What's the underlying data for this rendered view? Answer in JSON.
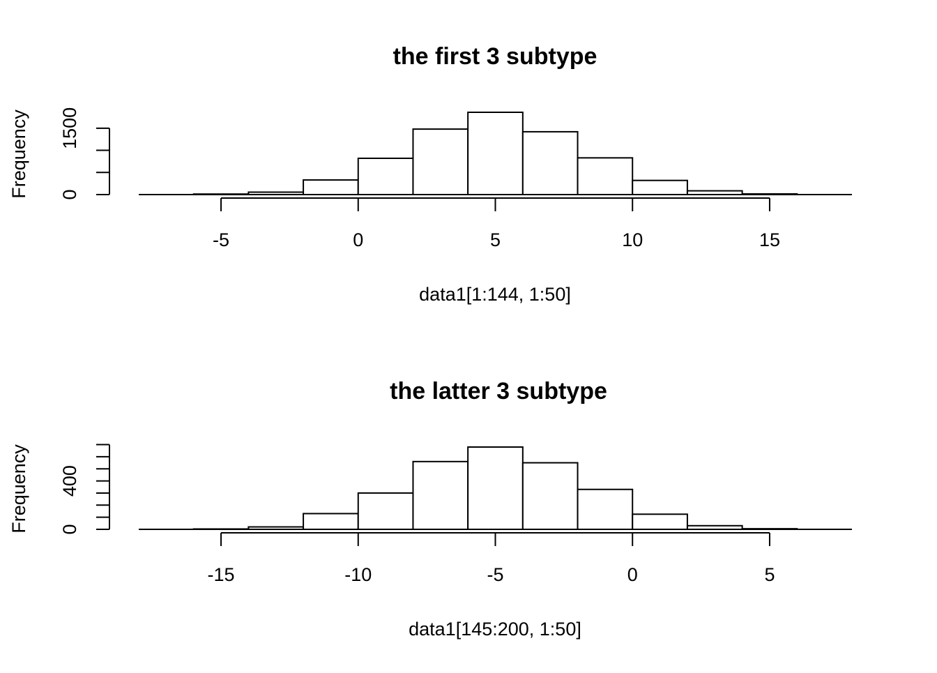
{
  "chart_data": [
    {
      "type": "bar",
      "title": "the first 3 subtype",
      "xlabel": "data1[1:144, 1:50]",
      "ylabel": "Frequency",
      "bin_edges": [
        -6,
        -4,
        -2,
        0,
        2,
        4,
        6,
        8,
        10,
        12,
        14,
        16
      ],
      "values": [
        12,
        55,
        330,
        820,
        1480,
        1860,
        1420,
        830,
        320,
        85,
        15
      ],
      "xlim": [
        -8,
        18
      ],
      "ylim": [
        0,
        1860
      ],
      "x_ticks": [
        -5,
        0,
        5,
        10,
        15
      ],
      "x_tick_labels": [
        "-5",
        "0",
        "5",
        "10",
        "15"
      ],
      "y_ticks": [
        0,
        500,
        1000,
        1500
      ],
      "y_tick_labels": [
        "0",
        "",
        "",
        "1500"
      ],
      "grid": false
    },
    {
      "type": "bar",
      "title": "the latter 3 subtype",
      "xlabel": "data1[145:200, 1:50]",
      "ylabel": "Frequency",
      "bin_edges": [
        -16,
        -14,
        -12,
        -10,
        -8,
        -6,
        -4,
        -2,
        0,
        2,
        4,
        6
      ],
      "values": [
        3,
        20,
        130,
        300,
        560,
        680,
        550,
        330,
        125,
        30,
        5
      ],
      "xlim": [
        -18,
        8
      ],
      "ylim": [
        0,
        680
      ],
      "x_ticks": [
        -15,
        -10,
        -5,
        0,
        5
      ],
      "x_tick_labels": [
        "-15",
        "-10",
        "-5",
        "0",
        "5"
      ],
      "y_ticks": [
        0,
        100,
        200,
        300,
        400,
        500,
        600,
        700
      ],
      "y_tick_labels": [
        "0",
        "",
        "",
        "",
        "400",
        "",
        "",
        ""
      ],
      "grid": false
    }
  ]
}
